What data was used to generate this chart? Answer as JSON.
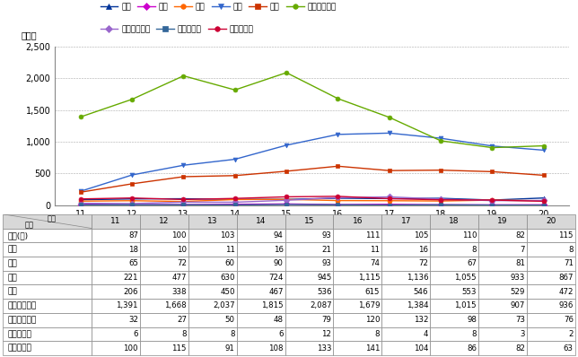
{
  "years": [
    11,
    12,
    13,
    14,
    15,
    16,
    17,
    18,
    19,
    20
  ],
  "series_order": [
    "殺人",
    "強盗",
    "強姦",
    "暴行",
    "傷害",
    "強制わいせつ",
    "公然わいせつ",
    "逮捕・監禁",
    "略取・誘拐"
  ],
  "series": {
    "殺人": {
      "values": [
        87,
        100,
        103,
        94,
        93,
        111,
        105,
        110,
        82,
        115
      ],
      "color": "#003399",
      "marker": "^"
    },
    "強盗": {
      "values": [
        18,
        10,
        11,
        16,
        21,
        11,
        16,
        8,
        7,
        8
      ],
      "color": "#cc00cc",
      "marker": "D"
    },
    "強姦": {
      "values": [
        65,
        72,
        60,
        90,
        93,
        74,
        72,
        67,
        81,
        71
      ],
      "color": "#ff6600",
      "marker": "o"
    },
    "暴行": {
      "values": [
        221,
        477,
        630,
        724,
        945,
        1115,
        1136,
        1055,
        933,
        867
      ],
      "color": "#3366cc",
      "marker": "v"
    },
    "傷害": {
      "values": [
        206,
        338,
        450,
        467,
        536,
        615,
        546,
        553,
        529,
        472
      ],
      "color": "#cc3300",
      "marker": "s"
    },
    "強制わいせつ": {
      "values": [
        1391,
        1668,
        2037,
        1815,
        2087,
        1679,
        1384,
        1015,
        907,
        936
      ],
      "color": "#66aa00",
      "marker": "o"
    },
    "公然わいせつ": {
      "values": [
        32,
        27,
        50,
        48,
        79,
        120,
        132,
        98,
        73,
        76
      ],
      "color": "#9966cc",
      "marker": "D"
    },
    "逮捕・監禁": {
      "values": [
        6,
        8,
        8,
        6,
        12,
        8,
        4,
        8,
        3,
        2
      ],
      "color": "#336699",
      "marker": "s"
    },
    "略取・誘拐": {
      "values": [
        100,
        115,
        91,
        108,
        133,
        141,
        104,
        86,
        82,
        63
      ],
      "color": "#cc0033",
      "marker": "o"
    }
  },
  "legend_row1": [
    "殺人",
    "強盗",
    "強姦",
    "暴行",
    "傷害",
    "強制わいせつ"
  ],
  "legend_row2": [
    "公然わいせつ",
    "逮捕・監禁",
    "略取・誘拐"
  ],
  "ylabel": "（件）",
  "ylim": [
    0,
    2500
  ],
  "yticks": [
    0,
    500,
    1000,
    1500,
    2000,
    2500
  ],
  "ytick_labels": [
    "0",
    "500",
    "1,000",
    "1,500",
    "2,000",
    "2,500"
  ],
  "grid_color": "#aaaaaa",
  "background_color": "#ffffff",
  "fig_width": 6.44,
  "fig_height": 3.98,
  "table_row_labels": [
    "殺人(件)",
    "強盗",
    "強姦",
    "暴行",
    "傷害",
    "強制わいせつ",
    "公然わいせつ",
    "逮捕・監禁",
    "略取・誘拐"
  ],
  "table_row_keys": [
    "殺人",
    "強盗",
    "強姦",
    "暴行",
    "傷害",
    "強制わいせつ",
    "公然わいせつ",
    "逮捕・監禁",
    "略取・誘拐"
  ],
  "header_label": "区分",
  "header_nenjilabel": "年次",
  "header_bg": "#d8d8d8"
}
